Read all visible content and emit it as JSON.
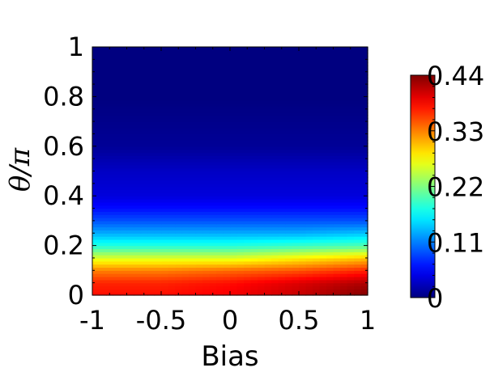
{
  "chart_data": {
    "type": "heatmap",
    "xlabel": "Bias",
    "ylabel": "θ/π",
    "xlim": [
      -1,
      1
    ],
    "ylim": [
      0,
      1
    ],
    "x_ticks": [
      "-1",
      "-0.5",
      "0",
      "0.5",
      "1"
    ],
    "y_ticks": [
      "0",
      "0.2",
      "0.4",
      "0.6",
      "0.8",
      "1"
    ],
    "colorbar": {
      "range": [
        0,
        0.44
      ],
      "ticks": [
        "0",
        "0.11",
        "0.22",
        "0.33",
        "0.44"
      ],
      "colormap": "jet"
    },
    "x": [
      -1,
      -0.5,
      0,
      0.5,
      1
    ],
    "y": [
      0,
      0.05,
      0.1,
      0.15,
      0.2,
      0.25,
      0.3,
      0.35,
      0.4,
      0.5,
      0.6,
      0.8,
      1
    ],
    "z": [
      [
        0.38,
        0.38,
        0.39,
        0.41,
        0.44
      ],
      [
        0.37,
        0.37,
        0.38,
        0.4,
        0.42
      ],
      [
        0.33,
        0.33,
        0.34,
        0.35,
        0.37
      ],
      [
        0.26,
        0.26,
        0.26,
        0.28,
        0.3
      ],
      [
        0.18,
        0.18,
        0.18,
        0.19,
        0.2
      ],
      [
        0.13,
        0.13,
        0.13,
        0.13,
        0.14
      ],
      [
        0.09,
        0.09,
        0.09,
        0.09,
        0.09
      ],
      [
        0.06,
        0.06,
        0.06,
        0.06,
        0.06
      ],
      [
        0.04,
        0.04,
        0.04,
        0.04,
        0.04
      ],
      [
        0.03,
        0.03,
        0.03,
        0.03,
        0.03
      ],
      [
        0.01,
        0.01,
        0.01,
        0.01,
        0.01
      ],
      [
        0.0,
        0.0,
        0.0,
        0.0,
        0.0
      ],
      [
        0.0,
        0.0,
        0.0,
        0.0,
        0.0
      ]
    ]
  }
}
